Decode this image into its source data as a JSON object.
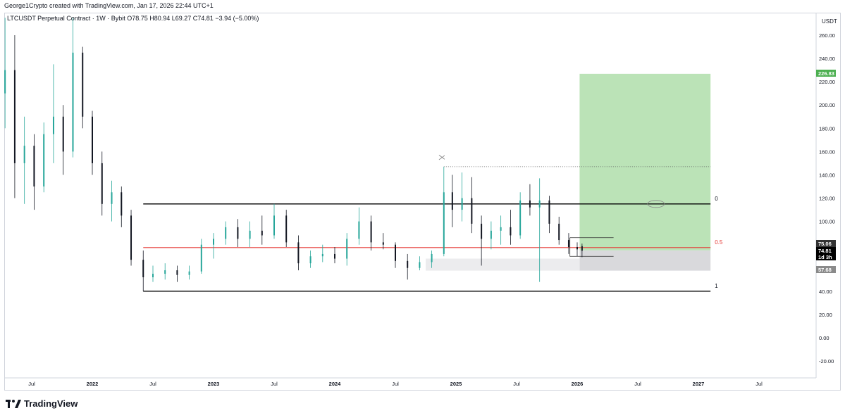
{
  "header": {
    "credit": "George1Crypto created with TradingView.com, Jan 17, 2026 22:44 UTC+1"
  },
  "legend": {
    "text": "LTCUSDT Perpetual Contract · 1W · Bybit  O78.75  H80.94  L69.27  C74.81  −3.94 (−5.00%)"
  },
  "footer": {
    "brand": "TradingView"
  },
  "colors": {
    "up": "#26a69a",
    "down": "#131722",
    "support": "#000000",
    "mid_line": "#e53935",
    "target_zone": "#b7e1b3",
    "stop_zone": "#d9d9dc"
  },
  "chart_data": {
    "type": "candlestick",
    "title": "LTCUSDT Perpetual Contract · 1W · Bybit",
    "ylabel": "USDT",
    "ylim": [
      -30,
      275
    ],
    "y_ticks": [
      "260.00",
      "240.00",
      "220.00",
      "200.00",
      "180.00",
      "160.00",
      "140.00",
      "120.00",
      "100.00",
      "80.00",
      "60.00",
      "40.00",
      "20.00",
      "0.00",
      "-20.00"
    ],
    "x_ticks": [
      "Jul",
      "2022",
      "Jul",
      "2023",
      "Jul",
      "2024",
      "Jul",
      "2025",
      "Jul",
      "2026",
      "Jul",
      "2027",
      "Jul"
    ],
    "last_price": {
      "open": 78.75,
      "high": 80.94,
      "low": 69.27,
      "close": 74.81,
      "change": "−3.94 (−5.00%)"
    },
    "price_tags": [
      {
        "label": "226.83",
        "value": 226.83,
        "color": "#4caf50"
      },
      {
        "label": "75.06",
        "value": 75.06,
        "color": "#333333"
      },
      {
        "label": "74.81",
        "value": 74.81,
        "color": "#000000"
      },
      {
        "label": "1d 3h",
        "value": 67.5,
        "color": "#000000"
      },
      {
        "label": "57.68",
        "value": 57.68,
        "color": "#8a8a8a"
      }
    ],
    "fib_levels": [
      {
        "label": "0",
        "value": 115
      },
      {
        "label": "0.5",
        "value": 77.5
      },
      {
        "label": "1",
        "value": 40
      }
    ],
    "position": {
      "entry": 75.06,
      "target": 226.83,
      "stop": 57.68
    },
    "candles": [
      {
        "t": 2021.28,
        "o": 210,
        "h": 275,
        "l": 180,
        "c": 230
      },
      {
        "t": 2021.36,
        "o": 230,
        "h": 260,
        "l": 120,
        "c": 150
      },
      {
        "t": 2021.44,
        "o": 150,
        "h": 190,
        "l": 115,
        "c": 165
      },
      {
        "t": 2021.52,
        "o": 165,
        "h": 175,
        "l": 110,
        "c": 130
      },
      {
        "t": 2021.6,
        "o": 130,
        "h": 185,
        "l": 125,
        "c": 175
      },
      {
        "t": 2021.68,
        "o": 175,
        "h": 235,
        "l": 150,
        "c": 190
      },
      {
        "t": 2021.76,
        "o": 190,
        "h": 200,
        "l": 140,
        "c": 160
      },
      {
        "t": 2021.84,
        "o": 160,
        "h": 275,
        "l": 155,
        "c": 245
      },
      {
        "t": 2021.92,
        "o": 245,
        "h": 250,
        "l": 180,
        "c": 190
      },
      {
        "t": 2022.0,
        "o": 190,
        "h": 195,
        "l": 140,
        "c": 150
      },
      {
        "t": 2022.08,
        "o": 150,
        "h": 160,
        "l": 105,
        "c": 115
      },
      {
        "t": 2022.16,
        "o": 115,
        "h": 135,
        "l": 100,
        "c": 125
      },
      {
        "t": 2022.24,
        "o": 125,
        "h": 130,
        "l": 95,
        "c": 105
      },
      {
        "t": 2022.32,
        "o": 105,
        "h": 110,
        "l": 62,
        "c": 67
      },
      {
        "t": 2022.42,
        "o": 67,
        "h": 75,
        "l": 40,
        "c": 52
      },
      {
        "t": 2022.5,
        "o": 52,
        "h": 62,
        "l": 48,
        "c": 55
      },
      {
        "t": 2022.6,
        "o": 55,
        "h": 64,
        "l": 50,
        "c": 58
      },
      {
        "t": 2022.7,
        "o": 58,
        "h": 62,
        "l": 48,
        "c": 54
      },
      {
        "t": 2022.8,
        "o": 54,
        "h": 62,
        "l": 50,
        "c": 57
      },
      {
        "t": 2022.9,
        "o": 57,
        "h": 85,
        "l": 55,
        "c": 80
      },
      {
        "t": 2023.0,
        "o": 80,
        "h": 90,
        "l": 68,
        "c": 85
      },
      {
        "t": 2023.1,
        "o": 85,
        "h": 100,
        "l": 80,
        "c": 95
      },
      {
        "t": 2023.2,
        "o": 95,
        "h": 102,
        "l": 78,
        "c": 85
      },
      {
        "t": 2023.3,
        "o": 85,
        "h": 100,
        "l": 78,
        "c": 92
      },
      {
        "t": 2023.4,
        "o": 92,
        "h": 105,
        "l": 80,
        "c": 88
      },
      {
        "t": 2023.5,
        "o": 88,
        "h": 115,
        "l": 85,
        "c": 105
      },
      {
        "t": 2023.6,
        "o": 105,
        "h": 110,
        "l": 78,
        "c": 82
      },
      {
        "t": 2023.7,
        "o": 82,
        "h": 88,
        "l": 58,
        "c": 64
      },
      {
        "t": 2023.8,
        "o": 64,
        "h": 75,
        "l": 60,
        "c": 70
      },
      {
        "t": 2023.9,
        "o": 70,
        "h": 80,
        "l": 65,
        "c": 72
      },
      {
        "t": 2024.0,
        "o": 72,
        "h": 78,
        "l": 64,
        "c": 68
      },
      {
        "t": 2024.1,
        "o": 68,
        "h": 90,
        "l": 62,
        "c": 85
      },
      {
        "t": 2024.2,
        "o": 85,
        "h": 112,
        "l": 80,
        "c": 100
      },
      {
        "t": 2024.3,
        "o": 100,
        "h": 105,
        "l": 75,
        "c": 82
      },
      {
        "t": 2024.4,
        "o": 82,
        "h": 90,
        "l": 76,
        "c": 80
      },
      {
        "t": 2024.5,
        "o": 80,
        "h": 82,
        "l": 60,
        "c": 66
      },
      {
        "t": 2024.6,
        "o": 66,
        "h": 72,
        "l": 50,
        "c": 60
      },
      {
        "t": 2024.7,
        "o": 60,
        "h": 70,
        "l": 58,
        "c": 65
      },
      {
        "t": 2024.8,
        "o": 65,
        "h": 75,
        "l": 60,
        "c": 72
      },
      {
        "t": 2024.9,
        "o": 72,
        "h": 147,
        "l": 70,
        "c": 125
      },
      {
        "t": 2024.97,
        "o": 125,
        "h": 140,
        "l": 95,
        "c": 110
      },
      {
        "t": 2025.05,
        "o": 110,
        "h": 142,
        "l": 100,
        "c": 120
      },
      {
        "t": 2025.13,
        "o": 120,
        "h": 138,
        "l": 90,
        "c": 98
      },
      {
        "t": 2025.21,
        "o": 98,
        "h": 105,
        "l": 62,
        "c": 85
      },
      {
        "t": 2025.29,
        "o": 85,
        "h": 100,
        "l": 76,
        "c": 92
      },
      {
        "t": 2025.37,
        "o": 92,
        "h": 105,
        "l": 80,
        "c": 95
      },
      {
        "t": 2025.45,
        "o": 95,
        "h": 110,
        "l": 80,
        "c": 88
      },
      {
        "t": 2025.53,
        "o": 88,
        "h": 125,
        "l": 85,
        "c": 118
      },
      {
        "t": 2025.61,
        "o": 118,
        "h": 132,
        "l": 105,
        "c": 112
      },
      {
        "t": 2025.69,
        "o": 112,
        "h": 137,
        "l": 48,
        "c": 118
      },
      {
        "t": 2025.77,
        "o": 118,
        "h": 122,
        "l": 90,
        "c": 98
      },
      {
        "t": 2025.85,
        "o": 98,
        "h": 104,
        "l": 80,
        "c": 84
      },
      {
        "t": 2025.93,
        "o": 84,
        "h": 90,
        "l": 72,
        "c": 78
      },
      {
        "t": 2026.0,
        "o": 78,
        "h": 82,
        "l": 70,
        "c": 76
      },
      {
        "t": 2026.04,
        "o": 78.75,
        "h": 80.94,
        "l": 69.27,
        "c": 74.81
      }
    ]
  }
}
